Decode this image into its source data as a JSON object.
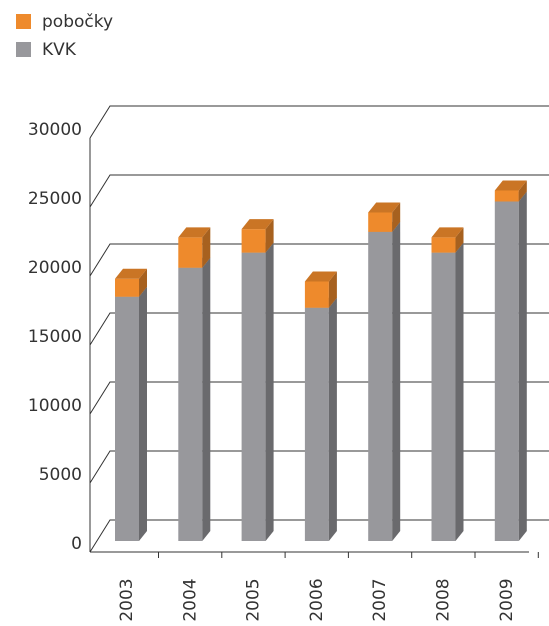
{
  "chart_data": {
    "type": "bar",
    "stacked": true,
    "three_d": true,
    "categories": [
      "2003",
      "2004",
      "2005",
      "2006",
      "2007",
      "2008",
      "2009"
    ],
    "series": [
      {
        "name": "KVK",
        "color": "#98989c",
        "values": [
          17700,
          19800,
          20900,
          16900,
          22400,
          20900,
          24600
        ]
      },
      {
        "name": "pobočky",
        "color": "#ee8a2c",
        "values": [
          1300,
          2200,
          1700,
          1900,
          1400,
          1100,
          800
        ]
      }
    ],
    "ylim": [
      0,
      30000
    ],
    "yticks": [
      0,
      5000,
      10000,
      15000,
      20000,
      25000,
      30000
    ],
    "grid": true,
    "legend": "top-left"
  }
}
